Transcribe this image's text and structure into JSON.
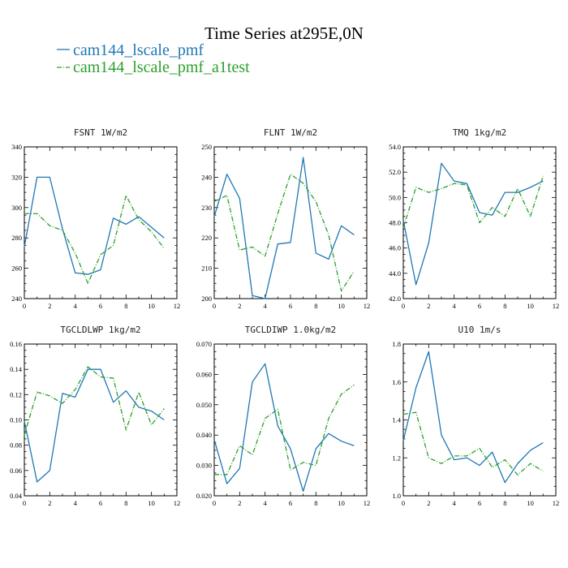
{
  "figure": {
    "title": "Time Series at295E,0N",
    "legend": [
      {
        "label": "cam144_lscale_pmf",
        "color": "#1f77b4",
        "dash": "solid"
      },
      {
        "label": "cam144_lscale_pmf_a1test",
        "color": "#2ca02c",
        "dash": "dashdot"
      }
    ]
  },
  "chart_data": [
    {
      "type": "line",
      "title": "FSNT  1W/m2",
      "xlim": [
        0,
        12
      ],
      "xticks": [
        0,
        2,
        4,
        6,
        8,
        10,
        12
      ],
      "xtick_labels": [
        "0",
        "2",
        "4",
        "6",
        "8",
        "10",
        "12"
      ],
      "ylim": [
        240,
        340
      ],
      "yticks": [
        240,
        260,
        280,
        300,
        320,
        340
      ],
      "ytick_labels": [
        "240",
        "260",
        "280",
        "300",
        "320",
        "340"
      ],
      "x": [
        0,
        1,
        2,
        3,
        4,
        5,
        6,
        7,
        8,
        9,
        10,
        11
      ],
      "series": [
        {
          "name": "cam144_lscale_pmf",
          "values": [
            274,
            320,
            320,
            286,
            257,
            256,
            259,
            293,
            289,
            294,
            287,
            280
          ]
        },
        {
          "name": "cam144_lscale_pmf_a1test",
          "values": [
            296,
            296,
            288,
            285,
            270,
            250,
            269,
            275,
            308,
            292,
            284,
            273
          ]
        }
      ]
    },
    {
      "type": "line",
      "title": "FLNT  1W/m2",
      "xlim": [
        0,
        12
      ],
      "xticks": [
        0,
        2,
        4,
        6,
        8,
        10,
        12
      ],
      "xtick_labels": [
        "0",
        "2",
        "4",
        "6",
        "8",
        "10",
        "12"
      ],
      "ylim": [
        200,
        250
      ],
      "yticks": [
        200,
        210,
        220,
        230,
        240,
        250
      ],
      "ytick_labels": [
        "200",
        "210",
        "220",
        "230",
        "240",
        "250"
      ],
      "x": [
        0,
        1,
        2,
        3,
        4,
        5,
        6,
        7,
        8,
        9,
        10,
        11
      ],
      "series": [
        {
          "name": "cam144_lscale_pmf",
          "values": [
            227,
            241,
            233,
            201,
            200,
            218,
            218.5,
            246.5,
            215,
            213,
            224,
            221
          ]
        },
        {
          "name": "cam144_lscale_pmf_a1test",
          "values": [
            232,
            234,
            216,
            217,
            214,
            228,
            241,
            238,
            232,
            221,
            202.5,
            209
          ]
        }
      ]
    },
    {
      "type": "line",
      "title": "TMQ  1kg/m2",
      "xlim": [
        0,
        12
      ],
      "xticks": [
        0,
        2,
        4,
        6,
        8,
        10,
        12
      ],
      "xtick_labels": [
        "0",
        "2",
        "4",
        "6",
        "8",
        "10",
        "12"
      ],
      "ylim": [
        42,
        54
      ],
      "yticks": [
        42,
        44,
        46,
        48,
        50,
        52,
        54
      ],
      "ytick_labels": [
        "42.0",
        "44.0",
        "46.0",
        "48.0",
        "50.0",
        "52.0",
        "54.0"
      ],
      "x": [
        0,
        1,
        2,
        3,
        4,
        5,
        6,
        7,
        8,
        9,
        10,
        11
      ],
      "series": [
        {
          "name": "cam144_lscale_pmf",
          "values": [
            48.2,
            43.1,
            46.4,
            52.7,
            51.3,
            51.1,
            48.8,
            48.6,
            50.4,
            50.4,
            50.8,
            51.3
          ]
        },
        {
          "name": "cam144_lscale_pmf_a1test",
          "values": [
            47.6,
            50.8,
            50.4,
            50.7,
            51.1,
            51.0,
            48.0,
            49.2,
            48.5,
            50.7,
            48.5,
            51.7
          ]
        }
      ]
    },
    {
      "type": "line",
      "title": "TGCLDLWP  1kg/m2",
      "xlim": [
        0,
        12
      ],
      "xticks": [
        0,
        2,
        4,
        6,
        8,
        10,
        12
      ],
      "xtick_labels": [
        "0",
        "2",
        "4",
        "6",
        "8",
        "10",
        "12"
      ],
      "ylim": [
        0.04,
        0.16
      ],
      "yticks": [
        0.04,
        0.06,
        0.08,
        0.1,
        0.12,
        0.14,
        0.16
      ],
      "ytick_labels": [
        "0.04",
        "0.06",
        "0.08",
        "0.10",
        "0.12",
        "0.14",
        "0.16"
      ],
      "x": [
        0,
        1,
        2,
        3,
        4,
        5,
        6,
        7,
        8,
        9,
        10,
        11
      ],
      "series": [
        {
          "name": "cam144_lscale_pmf",
          "values": [
            0.099,
            0.051,
            0.06,
            0.121,
            0.118,
            0.14,
            0.14,
            0.114,
            0.123,
            0.11,
            0.107,
            0.1
          ]
        },
        {
          "name": "cam144_lscale_pmf_a1test",
          "values": [
            0.088,
            0.122,
            0.119,
            0.113,
            0.124,
            0.142,
            0.134,
            0.133,
            0.092,
            0.122,
            0.096,
            0.109
          ]
        }
      ]
    },
    {
      "type": "line",
      "title": "TGCLDIWP  1.0kg/m2",
      "xlim": [
        0,
        12
      ],
      "xticks": [
        0,
        2,
        4,
        6,
        8,
        10,
        12
      ],
      "xtick_labels": [
        "0",
        "2",
        "4",
        "6",
        "8",
        "10",
        "12"
      ],
      "ylim": [
        0.02,
        0.07
      ],
      "yticks": [
        0.02,
        0.03,
        0.04,
        0.05,
        0.06,
        0.07
      ],
      "ytick_labels": [
        "0.020",
        "0.030",
        "0.040",
        "0.050",
        "0.060",
        "0.070"
      ],
      "x": [
        0,
        1,
        2,
        3,
        4,
        5,
        6,
        7,
        8,
        9,
        10,
        11
      ],
      "series": [
        {
          "name": "cam144_lscale_pmf",
          "values": [
            0.0385,
            0.024,
            0.029,
            0.0575,
            0.0635,
            0.043,
            0.0355,
            0.0215,
            0.0355,
            0.0405,
            0.038,
            0.0365
          ]
        },
        {
          "name": "cam144_lscale_pmf_a1test",
          "values": [
            0.027,
            0.027,
            0.0365,
            0.0335,
            0.0455,
            0.0485,
            0.0285,
            0.031,
            0.03,
            0.0455,
            0.0535,
            0.0565
          ]
        }
      ]
    },
    {
      "type": "line",
      "title": "U10  1m/s",
      "xlim": [
        0,
        12
      ],
      "xticks": [
        0,
        2,
        4,
        6,
        8,
        10,
        12
      ],
      "xtick_labels": [
        "0",
        "2",
        "4",
        "6",
        "8",
        "10",
        "12"
      ],
      "ylim": [
        1.0,
        1.8
      ],
      "yticks": [
        1.0,
        1.2,
        1.4,
        1.6,
        1.8
      ],
      "ytick_labels": [
        "1.0",
        "1.2",
        "1.4",
        "1.6",
        "1.8"
      ],
      "x": [
        0,
        1,
        2,
        3,
        4,
        5,
        6,
        7,
        8,
        9,
        10,
        11
      ],
      "series": [
        {
          "name": "cam144_lscale_pmf",
          "values": [
            1.29,
            1.57,
            1.76,
            1.32,
            1.19,
            1.2,
            1.16,
            1.23,
            1.07,
            1.17,
            1.24,
            1.28
          ]
        },
        {
          "name": "cam144_lscale_pmf_a1test",
          "values": [
            1.43,
            1.44,
            1.2,
            1.17,
            1.21,
            1.21,
            1.25,
            1.15,
            1.19,
            1.11,
            1.17,
            1.13
          ]
        }
      ]
    }
  ]
}
